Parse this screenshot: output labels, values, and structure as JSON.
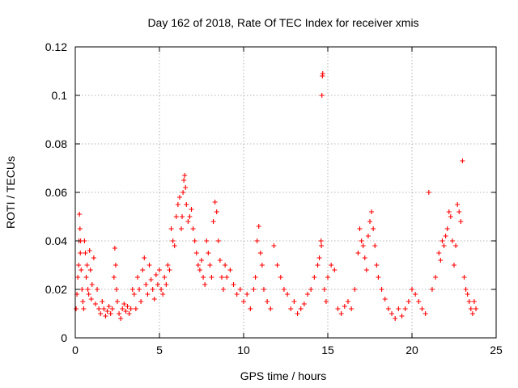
{
  "chart_data": {
    "type": "scatter",
    "title": "Day 162 of 2018, Rate Of TEC Index for receiver xmis",
    "xlabel": "GPS time / hours",
    "ylabel": "ROTI / TECUs",
    "xlim": [
      0,
      25
    ],
    "ylim": [
      0,
      0.12
    ],
    "xticks": [
      0,
      5,
      10,
      15,
      20,
      25
    ],
    "xtick_labels": [
      "0",
      "5",
      "10",
      "15",
      "20",
      "25"
    ],
    "yticks": [
      0,
      0.02,
      0.04,
      0.06,
      0.08,
      0.1,
      0.12
    ],
    "ytick_labels": [
      "0",
      "0.02",
      "0.04",
      "0.06",
      "0.08",
      "0.1",
      "0.12"
    ],
    "grid": true,
    "marker": "+",
    "marker_color": "#ff0000",
    "series": [
      {
        "name": "ROTI",
        "points": [
          [
            0.05,
            0.012
          ],
          [
            0.1,
            0.018
          ],
          [
            0.15,
            0.025
          ],
          [
            0.2,
            0.03
          ],
          [
            0.22,
            0.04
          ],
          [
            0.25,
            0.051
          ],
          [
            0.28,
            0.045
          ],
          [
            0.3,
            0.035
          ],
          [
            0.32,
            0.04
          ],
          [
            0.35,
            0.028
          ],
          [
            0.4,
            0.02
          ],
          [
            0.45,
            0.015
          ],
          [
            0.5,
            0.012
          ],
          [
            0.55,
            0.04
          ],
          [
            0.6,
            0.035
          ],
          [
            0.65,
            0.025
          ],
          [
            0.7,
            0.03
          ],
          [
            0.75,
            0.02
          ],
          [
            0.8,
            0.018
          ],
          [
            0.85,
            0.036
          ],
          [
            0.9,
            0.028
          ],
          [
            0.95,
            0.016
          ],
          [
            1.0,
            0.022
          ],
          [
            1.1,
            0.033
          ],
          [
            1.2,
            0.014
          ],
          [
            1.3,
            0.02
          ],
          [
            1.4,
            0.012
          ],
          [
            1.5,
            0.01
          ],
          [
            1.6,
            0.015
          ],
          [
            1.7,
            0.012
          ],
          [
            1.8,
            0.009
          ],
          [
            1.9,
            0.011
          ],
          [
            2.0,
            0.013
          ],
          [
            2.1,
            0.01
          ],
          [
            2.2,
            0.012
          ],
          [
            2.3,
            0.025
          ],
          [
            2.35,
            0.037
          ],
          [
            2.4,
            0.03
          ],
          [
            2.45,
            0.02
          ],
          [
            2.5,
            0.015
          ],
          [
            2.6,
            0.01
          ],
          [
            2.7,
            0.008
          ],
          [
            2.8,
            0.012
          ],
          [
            2.9,
            0.014
          ],
          [
            3.0,
            0.011
          ],
          [
            3.1,
            0.013
          ],
          [
            3.2,
            0.01
          ],
          [
            3.3,
            0.012
          ],
          [
            3.4,
            0.02
          ],
          [
            3.5,
            0.018
          ],
          [
            3.6,
            0.012
          ],
          [
            3.7,
            0.025
          ],
          [
            3.8,
            0.02
          ],
          [
            3.9,
            0.015
          ],
          [
            4.0,
            0.028
          ],
          [
            4.1,
            0.033
          ],
          [
            4.2,
            0.022
          ],
          [
            4.3,
            0.018
          ],
          [
            4.4,
            0.03
          ],
          [
            4.5,
            0.024
          ],
          [
            4.6,
            0.02
          ],
          [
            4.7,
            0.016
          ],
          [
            4.8,
            0.026
          ],
          [
            4.9,
            0.022
          ],
          [
            5.0,
            0.028
          ],
          [
            5.1,
            0.02
          ],
          [
            5.2,
            0.018
          ],
          [
            5.3,
            0.025
          ],
          [
            5.4,
            0.022
          ],
          [
            5.5,
            0.03
          ],
          [
            5.6,
            0.028
          ],
          [
            5.7,
            0.045
          ],
          [
            5.8,
            0.04
          ],
          [
            5.9,
            0.038
          ],
          [
            6.0,
            0.05
          ],
          [
            6.1,
            0.055
          ],
          [
            6.2,
            0.058
          ],
          [
            6.3,
            0.045
          ],
          [
            6.35,
            0.05
          ],
          [
            6.4,
            0.06
          ],
          [
            6.45,
            0.065
          ],
          [
            6.5,
            0.067
          ],
          [
            6.55,
            0.062
          ],
          [
            6.6,
            0.055
          ],
          [
            6.7,
            0.048
          ],
          [
            6.8,
            0.05
          ],
          [
            6.9,
            0.053
          ],
          [
            7.0,
            0.045
          ],
          [
            7.1,
            0.04
          ],
          [
            7.2,
            0.035
          ],
          [
            7.3,
            0.03
          ],
          [
            7.4,
            0.028
          ],
          [
            7.5,
            0.032
          ],
          [
            7.6,
            0.025
          ],
          [
            7.7,
            0.022
          ],
          [
            7.8,
            0.04
          ],
          [
            7.9,
            0.035
          ],
          [
            8.0,
            0.03
          ],
          [
            8.1,
            0.025
          ],
          [
            8.2,
            0.048
          ],
          [
            8.3,
            0.056
          ],
          [
            8.4,
            0.052
          ],
          [
            8.5,
            0.04
          ],
          [
            8.6,
            0.032
          ],
          [
            8.7,
            0.025
          ],
          [
            8.8,
            0.02
          ],
          [
            8.9,
            0.03
          ],
          [
            9.0,
            0.025
          ],
          [
            9.2,
            0.028
          ],
          [
            9.4,
            0.022
          ],
          [
            9.6,
            0.018
          ],
          [
            9.8,
            0.02
          ],
          [
            10.0,
            0.015
          ],
          [
            10.2,
            0.018
          ],
          [
            10.4,
            0.012
          ],
          [
            10.6,
            0.02
          ],
          [
            10.7,
            0.025
          ],
          [
            10.8,
            0.04
          ],
          [
            10.9,
            0.046
          ],
          [
            11.0,
            0.035
          ],
          [
            11.1,
            0.03
          ],
          [
            11.2,
            0.02
          ],
          [
            11.4,
            0.015
          ],
          [
            11.6,
            0.012
          ],
          [
            11.8,
            0.038
          ],
          [
            12.0,
            0.03
          ],
          [
            12.2,
            0.025
          ],
          [
            12.4,
            0.02
          ],
          [
            12.6,
            0.018
          ],
          [
            12.8,
            0.012
          ],
          [
            13.0,
            0.015
          ],
          [
            13.2,
            0.01
          ],
          [
            13.4,
            0.012
          ],
          [
            13.6,
            0.014
          ],
          [
            13.8,
            0.018
          ],
          [
            14.0,
            0.02
          ],
          [
            14.2,
            0.025
          ],
          [
            14.4,
            0.03
          ],
          [
            14.5,
            0.033
          ],
          [
            14.6,
            0.04
          ],
          [
            14.62,
            0.038
          ],
          [
            14.65,
            0.1
          ],
          [
            14.68,
            0.108
          ],
          [
            14.7,
            0.109
          ],
          [
            14.8,
            0.02
          ],
          [
            14.9,
            0.015
          ],
          [
            15.0,
            0.025
          ],
          [
            15.2,
            0.03
          ],
          [
            15.4,
            0.028
          ],
          [
            15.6,
            0.012
          ],
          [
            15.8,
            0.01
          ],
          [
            16.0,
            0.013
          ],
          [
            16.2,
            0.015
          ],
          [
            16.4,
            0.012
          ],
          [
            16.6,
            0.02
          ],
          [
            16.8,
            0.035
          ],
          [
            16.9,
            0.045
          ],
          [
            17.0,
            0.04
          ],
          [
            17.1,
            0.038
          ],
          [
            17.2,
            0.033
          ],
          [
            17.3,
            0.028
          ],
          [
            17.4,
            0.042
          ],
          [
            17.5,
            0.048
          ],
          [
            17.6,
            0.052
          ],
          [
            17.7,
            0.045
          ],
          [
            17.8,
            0.038
          ],
          [
            17.9,
            0.03
          ],
          [
            18.0,
            0.025
          ],
          [
            18.2,
            0.02
          ],
          [
            18.4,
            0.016
          ],
          [
            18.6,
            0.012
          ],
          [
            18.8,
            0.01
          ],
          [
            19.0,
            0.008
          ],
          [
            19.2,
            0.012
          ],
          [
            19.4,
            0.009
          ],
          [
            19.6,
            0.012
          ],
          [
            19.8,
            0.015
          ],
          [
            20.0,
            0.02
          ],
          [
            20.2,
            0.018
          ],
          [
            20.4,
            0.015
          ],
          [
            20.6,
            0.012
          ],
          [
            20.8,
            0.01
          ],
          [
            21.0,
            0.06
          ],
          [
            21.2,
            0.02
          ],
          [
            21.4,
            0.025
          ],
          [
            21.6,
            0.035
          ],
          [
            21.7,
            0.032
          ],
          [
            21.8,
            0.04
          ],
          [
            21.9,
            0.038
          ],
          [
            22.0,
            0.042
          ],
          [
            22.1,
            0.045
          ],
          [
            22.2,
            0.052
          ],
          [
            22.3,
            0.05
          ],
          [
            22.4,
            0.04
          ],
          [
            22.5,
            0.03
          ],
          [
            22.6,
            0.038
          ],
          [
            22.7,
            0.055
          ],
          [
            22.8,
            0.052
          ],
          [
            22.9,
            0.048
          ],
          [
            23.0,
            0.073
          ],
          [
            23.1,
            0.025
          ],
          [
            23.2,
            0.02
          ],
          [
            23.3,
            0.018
          ],
          [
            23.4,
            0.015
          ],
          [
            23.5,
            0.012
          ],
          [
            23.6,
            0.01
          ],
          [
            23.7,
            0.015
          ],
          [
            23.8,
            0.012
          ]
        ]
      }
    ]
  }
}
